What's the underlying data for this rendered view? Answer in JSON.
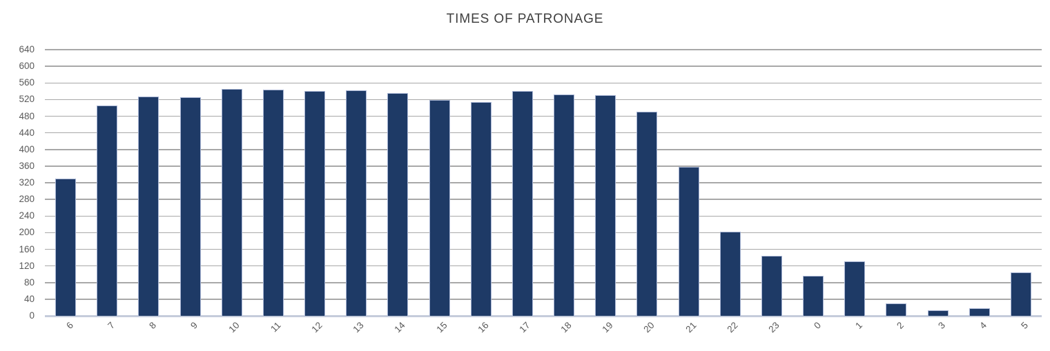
{
  "chart_data": {
    "type": "bar",
    "title": "TIMES OF PATRONAGE",
    "xlabel": "",
    "ylabel": "",
    "categories": [
      "6",
      "7",
      "8",
      "9",
      "10",
      "11",
      "12",
      "13",
      "14",
      "15",
      "16",
      "17",
      "18",
      "19",
      "20",
      "21",
      "22",
      "23",
      "0",
      "1",
      "2",
      "3",
      "4",
      "5"
    ],
    "values": [
      330,
      506,
      527,
      525,
      546,
      544,
      540,
      542,
      536,
      519,
      514,
      540,
      533,
      531,
      490,
      358,
      203,
      144,
      96,
      131,
      30,
      13,
      18,
      104
    ],
    "ylim": [
      0,
      640
    ],
    "ytick_step": 40,
    "yticks": [
      640,
      600,
      560,
      520,
      480,
      440,
      400,
      360,
      320,
      280,
      240,
      200,
      160,
      120,
      80,
      40,
      0
    ],
    "x_label_rotation_deg": -45,
    "grid": true,
    "legend": false,
    "colors": {
      "bar_fill": "#1e3a66",
      "bar_border": "#a7b4d3",
      "gridline": "#a8a8a8",
      "axis_line": "#c5ccdb",
      "tick_label": "#595959",
      "title": "#404040",
      "background": "#ffffff"
    }
  }
}
